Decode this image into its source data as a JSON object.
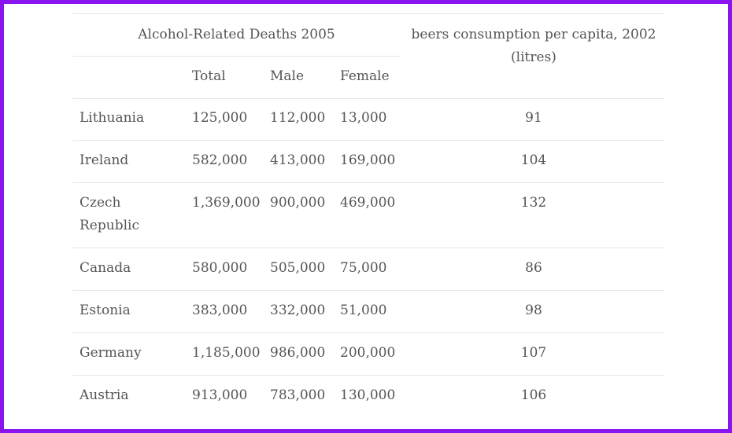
{
  "chart_data": {
    "type": "table",
    "group_header": "Alcohol-Related Deaths 2005",
    "consumption_header": "beers consumption per capita, 2002 (litres)",
    "columns": [
      "Total",
      "Male",
      "Female"
    ],
    "rows": [
      {
        "country": "Lithuania",
        "total": "125,000",
        "male": "112,000",
        "female": "13,000",
        "beer": "91"
      },
      {
        "country": "Ireland",
        "total": "582,000",
        "male": "413,000",
        "female": "169,000",
        "beer": "104"
      },
      {
        "country": "Czech Republic",
        "total": "1,369,000",
        "male": "900,000",
        "female": "469,000",
        "beer": "132"
      },
      {
        "country": "Canada",
        "total": "580,000",
        "male": "505,000",
        "female": "75,000",
        "beer": "86"
      },
      {
        "country": "Estonia",
        "total": "383,000",
        "male": "332,000",
        "female": "51,000",
        "beer": "98"
      },
      {
        "country": "Germany",
        "total": "1,185,000",
        "male": "986,000",
        "female": "200,000",
        "beer": "107"
      },
      {
        "country": "Austria",
        "total": "913,000",
        "male": "783,000",
        "female": "130,000",
        "beer": "106"
      }
    ]
  },
  "colors": {
    "frame_border": "#8a14f0",
    "text": "#555555",
    "rule": "#e6e6e6"
  }
}
